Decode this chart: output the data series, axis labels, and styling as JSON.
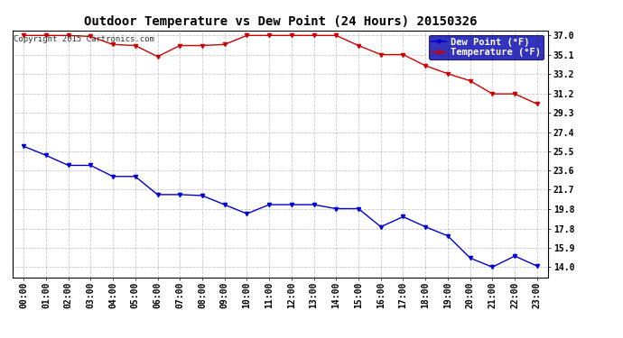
{
  "title": "Outdoor Temperature vs Dew Point (24 Hours) 20150326",
  "copyright": "Copyright 2015 Cartronics.com",
  "x_labels": [
    "00:00",
    "01:00",
    "02:00",
    "03:00",
    "04:00",
    "05:00",
    "06:00",
    "07:00",
    "08:00",
    "09:00",
    "10:00",
    "11:00",
    "12:00",
    "13:00",
    "14:00",
    "15:00",
    "16:00",
    "17:00",
    "18:00",
    "19:00",
    "20:00",
    "21:00",
    "22:00",
    "23:00"
  ],
  "temperature": [
    37.0,
    37.0,
    37.0,
    36.9,
    36.1,
    36.0,
    34.9,
    36.0,
    36.0,
    36.1,
    37.0,
    37.0,
    37.0,
    37.0,
    37.0,
    36.0,
    35.1,
    35.1,
    34.0,
    33.2,
    32.5,
    31.2,
    31.2,
    30.2
  ],
  "dew_point": [
    26.0,
    25.1,
    24.1,
    24.1,
    23.0,
    23.0,
    21.2,
    21.2,
    21.1,
    20.2,
    19.3,
    20.2,
    20.2,
    20.2,
    19.8,
    19.8,
    18.0,
    19.0,
    18.0,
    17.1,
    14.9,
    14.0,
    15.1,
    14.1
  ],
  "temp_color": "#cc0000",
  "dew_color": "#0000cc",
  "background_color": "#ffffff",
  "grid_color": "#c8c8c8",
  "ylim_min": 13.0,
  "ylim_max": 37.5,
  "yticks": [
    14.0,
    15.9,
    17.8,
    19.8,
    21.7,
    23.6,
    25.5,
    27.4,
    29.3,
    31.2,
    33.2,
    35.1,
    37.0
  ],
  "legend_dew_label": "Dew Point (°F)",
  "legend_temp_label": "Temperature (°F)",
  "legend_bg": "#0000aa",
  "marker_style": "v",
  "marker_size": 3,
  "linewidth": 1.0,
  "title_fontsize": 10,
  "tick_fontsize": 7,
  "copyright_fontsize": 6.5
}
